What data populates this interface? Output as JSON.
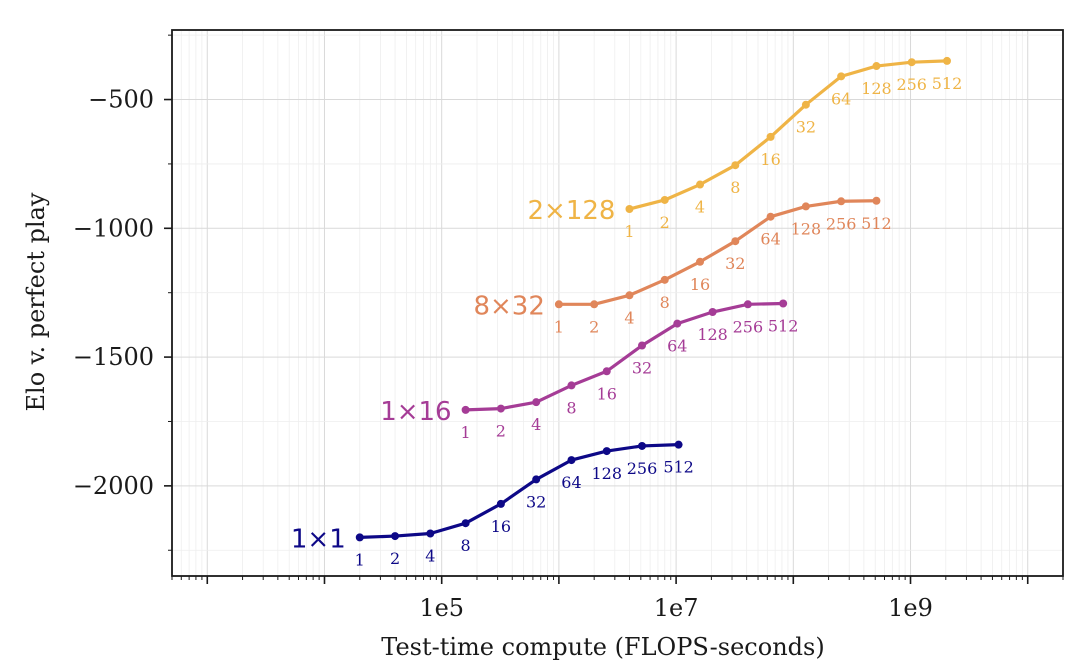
{
  "chart_data": {
    "type": "line",
    "xlabel": "Test-time compute (FLOPS-seconds)",
    "ylabel": "Elo v. perfect play",
    "x_scale": "log",
    "xlim": [
      500,
      20000000000
    ],
    "ylim": [
      -2350,
      -230
    ],
    "x_ticks": [
      {
        "value": 100000,
        "label": "1e5"
      },
      {
        "value": 10000000,
        "label": "1e7"
      },
      {
        "value": 1000000000,
        "label": "1e9"
      }
    ],
    "y_ticks": [
      {
        "value": -500,
        "label": "−500"
      },
      {
        "value": -1000,
        "label": "−1000"
      },
      {
        "value": -1500,
        "label": "−1500"
      },
      {
        "value": -2000,
        "label": "−2000"
      }
    ],
    "grid": true,
    "series": [
      {
        "name": "1×1",
        "color": "#0d0887",
        "x": [
          20000,
          40000,
          80000,
          160000,
          320000,
          640000,
          1280000,
          2560000,
          5120000,
          10500000
        ],
        "y": [
          -2200,
          -2195,
          -2185,
          -2145,
          -2070,
          -1975,
          -1900,
          -1865,
          -1845,
          -1840
        ],
        "point_labels": [
          "1",
          "2",
          "4",
          "8",
          "16",
          "32",
          "64",
          "128",
          "256",
          "512"
        ]
      },
      {
        "name": "1×16",
        "color": "#a53c96",
        "x": [
          160000,
          320000,
          640000,
          1280000,
          2560000,
          5120000,
          10240000,
          20480000,
          40960000,
          81920000
        ],
        "y": [
          -1705,
          -1700,
          -1675,
          -1610,
          -1555,
          -1455,
          -1370,
          -1325,
          -1295,
          -1292
        ],
        "point_labels": [
          "1",
          "2",
          "4",
          "8",
          "16",
          "32",
          "64",
          "128",
          "256",
          "512"
        ]
      },
      {
        "name": "8×32",
        "color": "#e0865a",
        "x": [
          1000000,
          2000000,
          4000000,
          8000000,
          16000000,
          32000000,
          64000000,
          128000000,
          256000000,
          512000000
        ],
        "y": [
          -1295,
          -1295,
          -1260,
          -1200,
          -1130,
          -1050,
          -955,
          -915,
          -895,
          -893
        ],
        "point_labels": [
          "1",
          "2",
          "4",
          "8",
          "16",
          "32",
          "64",
          "128",
          "256",
          "512"
        ]
      },
      {
        "name": "2×128",
        "color": "#efb446",
        "x": [
          4000000,
          8000000,
          16000000,
          32000000,
          64000000,
          128000000,
          256000000,
          512000000,
          1024000000,
          2048000000
        ],
        "y": [
          -925,
          -890,
          -830,
          -755,
          -645,
          -520,
          -410,
          -370,
          -355,
          -350
        ],
        "point_labels": [
          "1",
          "2",
          "4",
          "8",
          "16",
          "32",
          "64",
          "128",
          "256",
          "512"
        ]
      }
    ]
  }
}
